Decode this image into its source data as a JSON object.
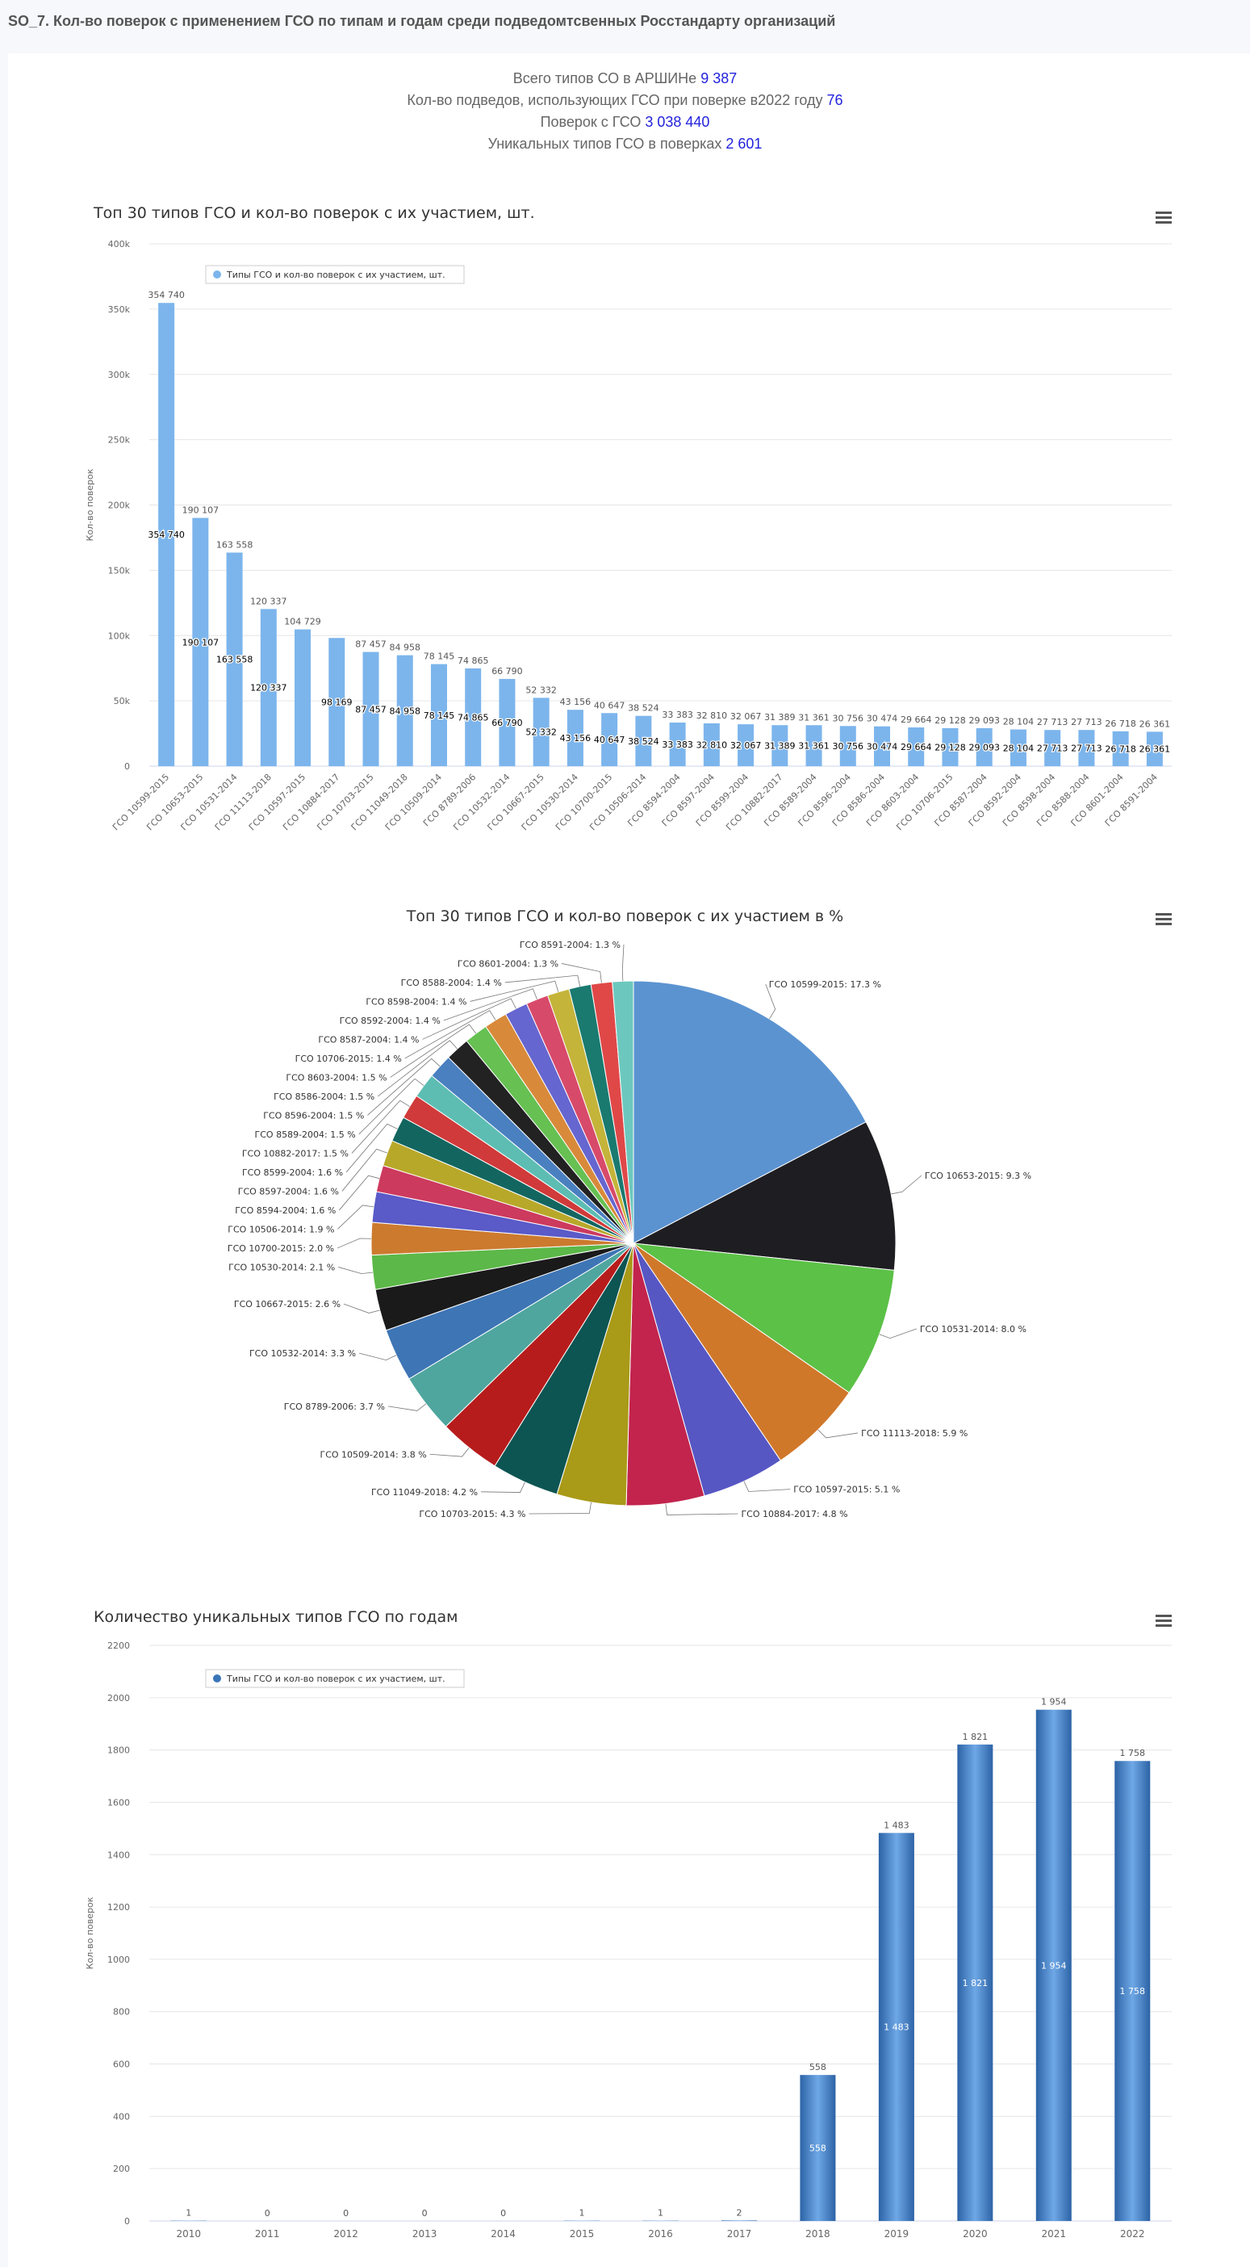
{
  "page_title": "SO_7. Кол-во поверок с применением ГСО по типам и годам среди подведомтсвенных Росстандарту организаций",
  "stats": [
    {
      "label": "Всего типов СО в АРШИНе",
      "value": "9 387"
    },
    {
      "label": "Кол-во подведов, использующих ГСО при поверке в2022 году",
      "value": "76"
    },
    {
      "label": "Поверок с ГСО",
      "value": "3 038 440"
    },
    {
      "label": "Уникальных типов ГСО в поверках",
      "value": "2 601"
    }
  ],
  "icons": {
    "menu": "hamburger-menu-icon",
    "legend_marker": "circle-marker-icon"
  },
  "colors": {
    "bar": "#7cb5ec",
    "year_bar": "#3a75b8",
    "accent_value": "#2222dd"
  },
  "chart_data": [
    {
      "type": "bar",
      "title": "Топ 30 типов ГСО и кол-во поверок с их участием, шт.",
      "ylabel": "Кол-во поверок",
      "xlabel": "",
      "ylim": [
        0,
        400000
      ],
      "yticks": [
        "0",
        "50k",
        "100k",
        "150k",
        "200k",
        "250k",
        "300k",
        "350k",
        "400k"
      ],
      "legend": "Типы ГСО и кол-во поверок с их участием, шт.",
      "legend_position": "top-left",
      "grid": true,
      "categories": [
        "ГСО 10599-2015",
        "ГСО 10653-2015",
        "ГСО 10531-2014",
        "ГСО 11113-2018",
        "ГСО 10597-2015",
        "ГСО 10884-2017",
        "ГСО 10703-2015",
        "ГСО 11049-2018",
        "ГСО 10509-2014",
        "ГСО 8789-2006",
        "ГСО 10532-2014",
        "ГСО 10667-2015",
        "ГСО 10530-2014",
        "ГСО 10700-2015",
        "ГСО 10506-2014",
        "ГСО 8594-2004",
        "ГСО 8597-2004",
        "ГСО 8599-2004",
        "ГСО 10882-2017",
        "ГСО 8589-2004",
        "ГСО 8596-2004",
        "ГСО 8586-2004",
        "ГСО 8603-2004",
        "ГСО 10706-2015",
        "ГСО 8587-2004",
        "ГСО 8592-2004",
        "ГСО 8598-2004",
        "ГСО 8588-2004",
        "ГСО 8601-2004",
        "ГСО 8591-2004"
      ],
      "values": [
        354740,
        190107,
        163558,
        120337,
        104729,
        98169,
        87457,
        84958,
        78145,
        74865,
        66790,
        52332,
        43156,
        40647,
        38524,
        33383,
        32810,
        32067,
        31389,
        31361,
        30756,
        30474,
        29664,
        29128,
        29093,
        28104,
        27713,
        27713,
        26718,
        26361
      ],
      "value_labels_top": [
        "354 740",
        "190 107",
        "163 558",
        "120 337",
        "104 729",
        "",
        "87 457",
        "84 958",
        "78 145",
        "74 865",
        "66 790",
        "52 332",
        "43 156",
        "40 647",
        "38 524",
        "33 383",
        "32 810",
        "32 067",
        "31 389",
        "31 361",
        "30 756",
        "30 474",
        "29 664",
        "29 128",
        "29 093",
        "28 104",
        "27 713",
        "27 713",
        "26 718",
        "26 361"
      ],
      "value_labels_inner": [
        "354 740",
        "190 107",
        "163 558",
        "120 337",
        "",
        "98 169",
        "87 457",
        "84 958",
        "78 145",
        "74 865",
        "66 790",
        "52 332",
        "43 156",
        "40 647",
        "38 524",
        "33 383",
        "32 810",
        "32 067",
        "31 389",
        "31 361",
        "30 756",
        "30 474",
        "29 664",
        "29 128",
        "29 093",
        "28 104",
        "27 713",
        "27 713",
        "26 718",
        "26 361"
      ]
    },
    {
      "type": "pie",
      "title": "Топ 30 типов ГСО и кол-во поверок с их участием в %",
      "labels": [
        "ГСО 10599-2015: 17.3 %",
        "ГСО 10653-2015: 9.3 %",
        "ГСО 10531-2014: 8.0 %",
        "ГСО 11113-2018: 5.9 %",
        "ГСО 10597-2015: 5.1 %",
        "ГСО 10884-2017: 4.8 %",
        "ГСО 10703-2015: 4.3 %",
        "ГСО 11049-2018: 4.2 %",
        "ГСО 10509-2014: 3.8 %",
        "ГСО 8789-2006: 3.7 %",
        "ГСО 10532-2014: 3.3 %",
        "ГСО 10667-2015: 2.6 %",
        "ГСО 10530-2014: 2.1 %",
        "ГСО 10700-2015: 2.0 %",
        "ГСО 10506-2014: 1.9 %",
        "ГСО 8594-2004: 1.6 %",
        "ГСО 8597-2004: 1.6 %",
        "ГСО 8599-2004: 1.6 %",
        "ГСО 10882-2017: 1.5 %",
        "ГСО 8589-2004: 1.5 %",
        "ГСО 8596-2004: 1.5 %",
        "ГСО 8586-2004: 1.5 %",
        "ГСО 8603-2004: 1.5 %",
        "ГСО 10706-2015: 1.4 %",
        "ГСО 8587-2004: 1.4 %",
        "ГСО 8592-2004: 1.4 %",
        "ГСО 8598-2004: 1.4 %",
        "ГСО 8588-2004: 1.4 %",
        "ГСО 8601-2004: 1.3 %",
        "ГСО 8591-2004: 1.3 %"
      ],
      "values": [
        354740,
        190107,
        163558,
        120337,
        104729,
        98169,
        87457,
        84958,
        78145,
        74865,
        66790,
        52332,
        43156,
        40647,
        38524,
        33383,
        32810,
        32067,
        31389,
        31361,
        30756,
        30474,
        29664,
        29128,
        29093,
        28104,
        27713,
        27713,
        26718,
        26361
      ],
      "colors": [
        "#5b93d1",
        "#1e1e22",
        "#5cc147",
        "#d0782a",
        "#5757c4",
        "#c2244d",
        "#a99a18",
        "#0d5552",
        "#b71c1c",
        "#4fa69e",
        "#3e75b5",
        "#1a1a1a",
        "#5cb848",
        "#cc7a2e",
        "#5a5ac8",
        "#cc3a5e",
        "#b8a82a",
        "#136660",
        "#d03a3a",
        "#5dbdb3",
        "#4a80c0",
        "#222222",
        "#66c052",
        "#d88a3a",
        "#6666d0",
        "#d84a6a",
        "#c4b43a",
        "#1a7a70",
        "#e04848",
        "#6cc8be"
      ]
    },
    {
      "type": "bar",
      "title": "Количество уникальных типов ГСО по годам",
      "ylabel": "Кол-во поверок",
      "xlabel": "",
      "ylim": [
        0,
        2200
      ],
      "yticks": [
        "0",
        "200",
        "400",
        "600",
        "800",
        "1000",
        "1200",
        "1400",
        "1600",
        "1800",
        "2000",
        "2200"
      ],
      "legend": "Типы ГСО и кол-во поверок с их участием, шт.",
      "legend_position": "top-left",
      "grid": true,
      "categories": [
        "2010",
        "2011",
        "2012",
        "2013",
        "2014",
        "2015",
        "2016",
        "2017",
        "2018",
        "2019",
        "2020",
        "2021",
        "2022"
      ],
      "values": [
        1,
        0,
        0,
        0,
        0,
        1,
        1,
        2,
        558,
        1483,
        1821,
        1954,
        1758
      ],
      "value_labels_top": [
        "1",
        "0",
        "0",
        "0",
        "0",
        "1",
        "1",
        "2",
        "558",
        "1 483",
        "1 821",
        "1 954",
        "1 758"
      ],
      "value_labels_inner": [
        "",
        "",
        "",
        "",
        "",
        "",
        "",
        "",
        "558",
        "1 483",
        "1 821",
        "1 954",
        "1 758"
      ]
    }
  ]
}
